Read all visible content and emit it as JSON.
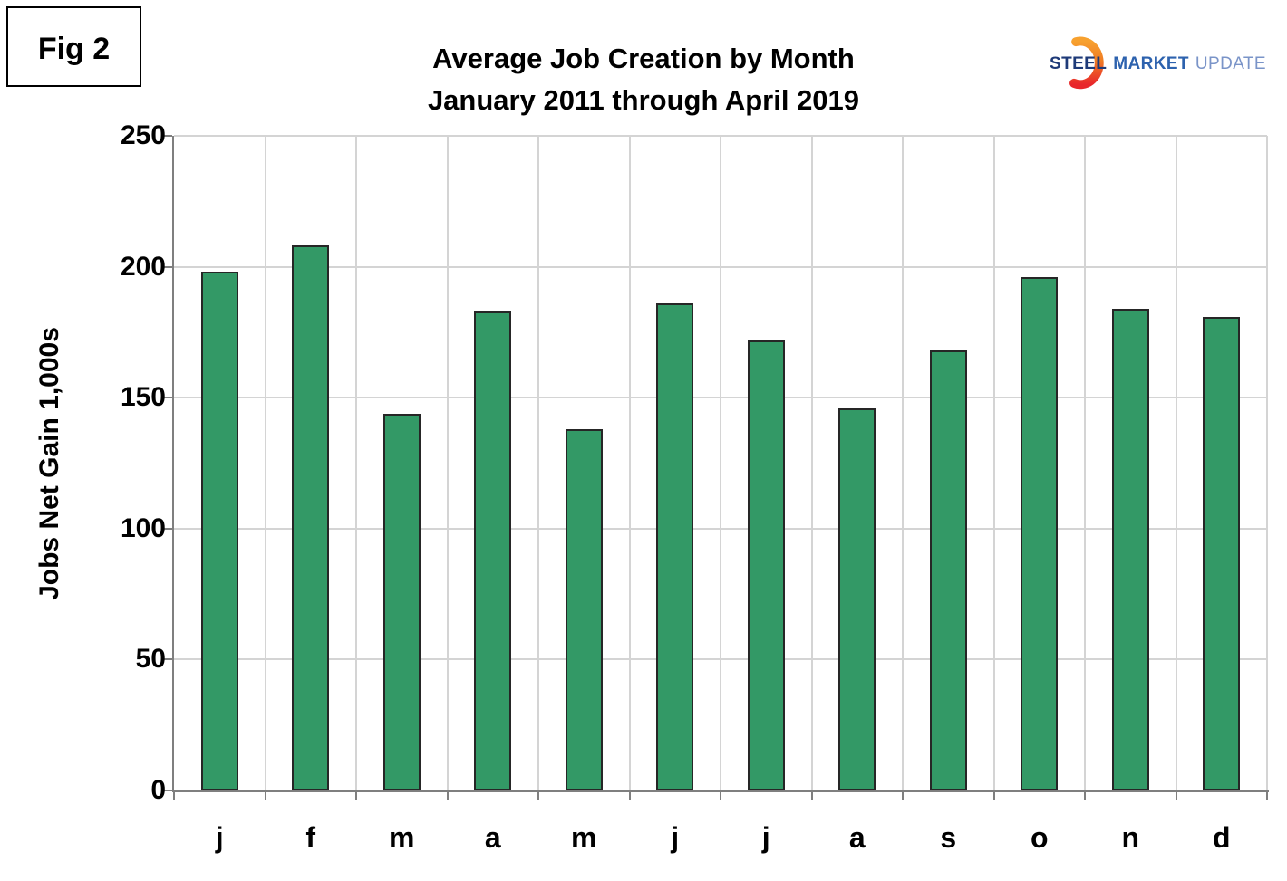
{
  "fig_label": "Fig 2",
  "title": {
    "line1": "Average Job Creation by Month",
    "line2": "January 2011 through April 2019"
  },
  "logo": {
    "word1": "STEEL",
    "word2": "MARKET",
    "word3": "UPDATE"
  },
  "colors": {
    "bar_color": "#339966",
    "bar_border": "#262626",
    "grid_color": "#d4d4d4",
    "axis_color": "#7f7f7f",
    "logo_steel": "#1e3a78",
    "logo_market": "#2d62ae",
    "logo_update": "#7a94c8",
    "logo_crescent_top": "#f7a12f",
    "logo_crescent_bottom": "#e8262b"
  },
  "chart_data": {
    "type": "bar",
    "title": "Average Job Creation by Month",
    "subtitle": "January 2011 through April 2019",
    "categories": [
      "j",
      "f",
      "m",
      "a",
      "m",
      "j",
      "j",
      "a",
      "s",
      "o",
      "n",
      "d"
    ],
    "values": [
      198,
      208,
      144,
      183,
      138,
      186,
      172,
      146,
      168,
      196,
      184,
      181
    ],
    "xlabel": "",
    "ylabel": "Jobs Net Gain 1,000s",
    "ylim": [
      0,
      250
    ],
    "yticks": [
      0,
      50,
      100,
      150,
      200,
      250
    ],
    "grid": true,
    "legend": false,
    "bar_fill": "#339966"
  }
}
